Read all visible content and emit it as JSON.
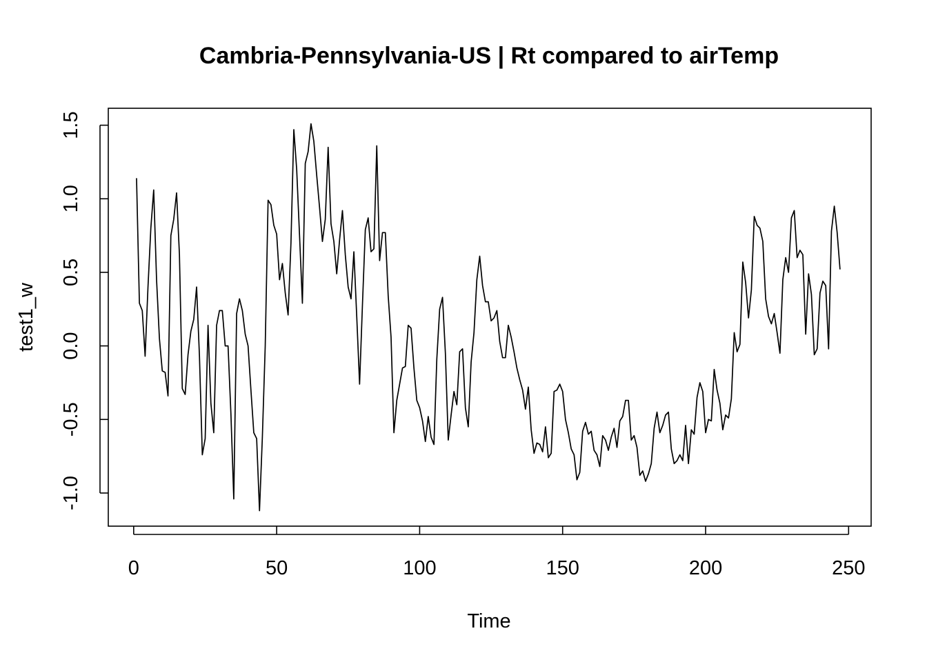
{
  "chart_data": {
    "type": "line",
    "title": "Cambria-Pennsylvania-US | Rt compared to airTemp",
    "xlabel": "Time",
    "ylabel": "test1_w",
    "xlim": [
      1,
      248
    ],
    "ylim": [
      -1.12,
      1.51
    ],
    "x_ticks": [
      0,
      50,
      100,
      150,
      200,
      250
    ],
    "x_tick_labels": [
      "0",
      "50",
      "100",
      "150",
      "200",
      "250"
    ],
    "y_ticks": [
      -1.0,
      -0.5,
      0.0,
      0.5,
      1.0,
      1.5
    ],
    "y_tick_labels": [
      "-1.0",
      "-0.5",
      "0.0",
      "0.5",
      "1.0",
      "1.5"
    ],
    "grid": false,
    "legend": "none",
    "line_color": "#000000",
    "series": [
      {
        "x_start": 1,
        "values": [
          1.14,
          0.29,
          0.24,
          -0.07,
          0.4,
          0.8,
          1.06,
          0.45,
          0.05,
          -0.17,
          -0.18,
          -0.34,
          0.75,
          0.86,
          1.04,
          0.62,
          -0.29,
          -0.33,
          -0.06,
          0.1,
          0.18,
          0.4,
          -0.07,
          -0.74,
          -0.63,
          0.14,
          -0.39,
          -0.59,
          0.14,
          0.24,
          0.24,
          0.0,
          0.0,
          -0.46,
          -1.04,
          0.22,
          0.32,
          0.24,
          0.08,
          0.0,
          -0.3,
          -0.59,
          -0.63,
          -1.12,
          -0.62,
          0.0,
          0.99,
          0.96,
          0.82,
          0.76,
          0.45,
          0.56,
          0.36,
          0.21,
          0.7,
          1.47,
          1.2,
          0.75,
          0.29,
          1.24,
          1.32,
          1.51,
          1.39,
          1.16,
          0.94,
          0.71,
          0.86,
          1.35,
          0.83,
          0.71,
          0.49,
          0.72,
          0.92,
          0.62,
          0.4,
          0.32,
          0.64,
          0.2,
          -0.26,
          0.28,
          0.79,
          0.87,
          0.64,
          0.66,
          1.36,
          0.58,
          0.77,
          0.77,
          0.34,
          0.06,
          -0.59,
          -0.37,
          -0.26,
          -0.15,
          -0.14,
          0.14,
          0.12,
          -0.15,
          -0.37,
          -0.42,
          -0.51,
          -0.65,
          -0.48,
          -0.62,
          -0.67,
          -0.09,
          0.25,
          0.33,
          -0.05,
          -0.64,
          -0.47,
          -0.31,
          -0.4,
          -0.04,
          -0.02,
          -0.42,
          -0.55,
          -0.11,
          0.09,
          0.45,
          0.61,
          0.41,
          0.3,
          0.3,
          0.17,
          0.19,
          0.24,
          0.03,
          -0.08,
          -0.08,
          0.14,
          0.06,
          -0.04,
          -0.15,
          -0.23,
          -0.3,
          -0.43,
          -0.28,
          -0.57,
          -0.73,
          -0.66,
          -0.67,
          -0.72,
          -0.55,
          -0.76,
          -0.73,
          -0.31,
          -0.3,
          -0.26,
          -0.31,
          -0.5,
          -0.59,
          -0.7,
          -0.74,
          -0.91,
          -0.86,
          -0.58,
          -0.52,
          -0.6,
          -0.58,
          -0.71,
          -0.74,
          -0.82,
          -0.61,
          -0.64,
          -0.71,
          -0.62,
          -0.56,
          -0.69,
          -0.51,
          -0.48,
          -0.37,
          -0.37,
          -0.64,
          -0.61,
          -0.69,
          -0.88,
          -0.85,
          -0.92,
          -0.87,
          -0.8,
          -0.56,
          -0.45,
          -0.59,
          -0.54,
          -0.47,
          -0.45,
          -0.7,
          -0.8,
          -0.78,
          -0.74,
          -0.78,
          -0.54,
          -0.8,
          -0.57,
          -0.6,
          -0.35,
          -0.25,
          -0.31,
          -0.59,
          -0.5,
          -0.51,
          -0.16,
          -0.3,
          -0.39,
          -0.57,
          -0.47,
          -0.49,
          -0.36,
          0.09,
          -0.04,
          0.01,
          0.57,
          0.43,
          0.19,
          0.38,
          0.88,
          0.82,
          0.8,
          0.71,
          0.32,
          0.2,
          0.15,
          0.22,
          0.09,
          -0.05,
          0.45,
          0.6,
          0.5,
          0.87,
          0.92,
          0.6,
          0.65,
          0.62,
          0.08,
          0.49,
          0.35,
          -0.06,
          -0.02,
          0.36,
          0.44,
          0.41,
          -0.02,
          0.78,
          0.95,
          0.77,
          0.52
        ]
      }
    ]
  }
}
